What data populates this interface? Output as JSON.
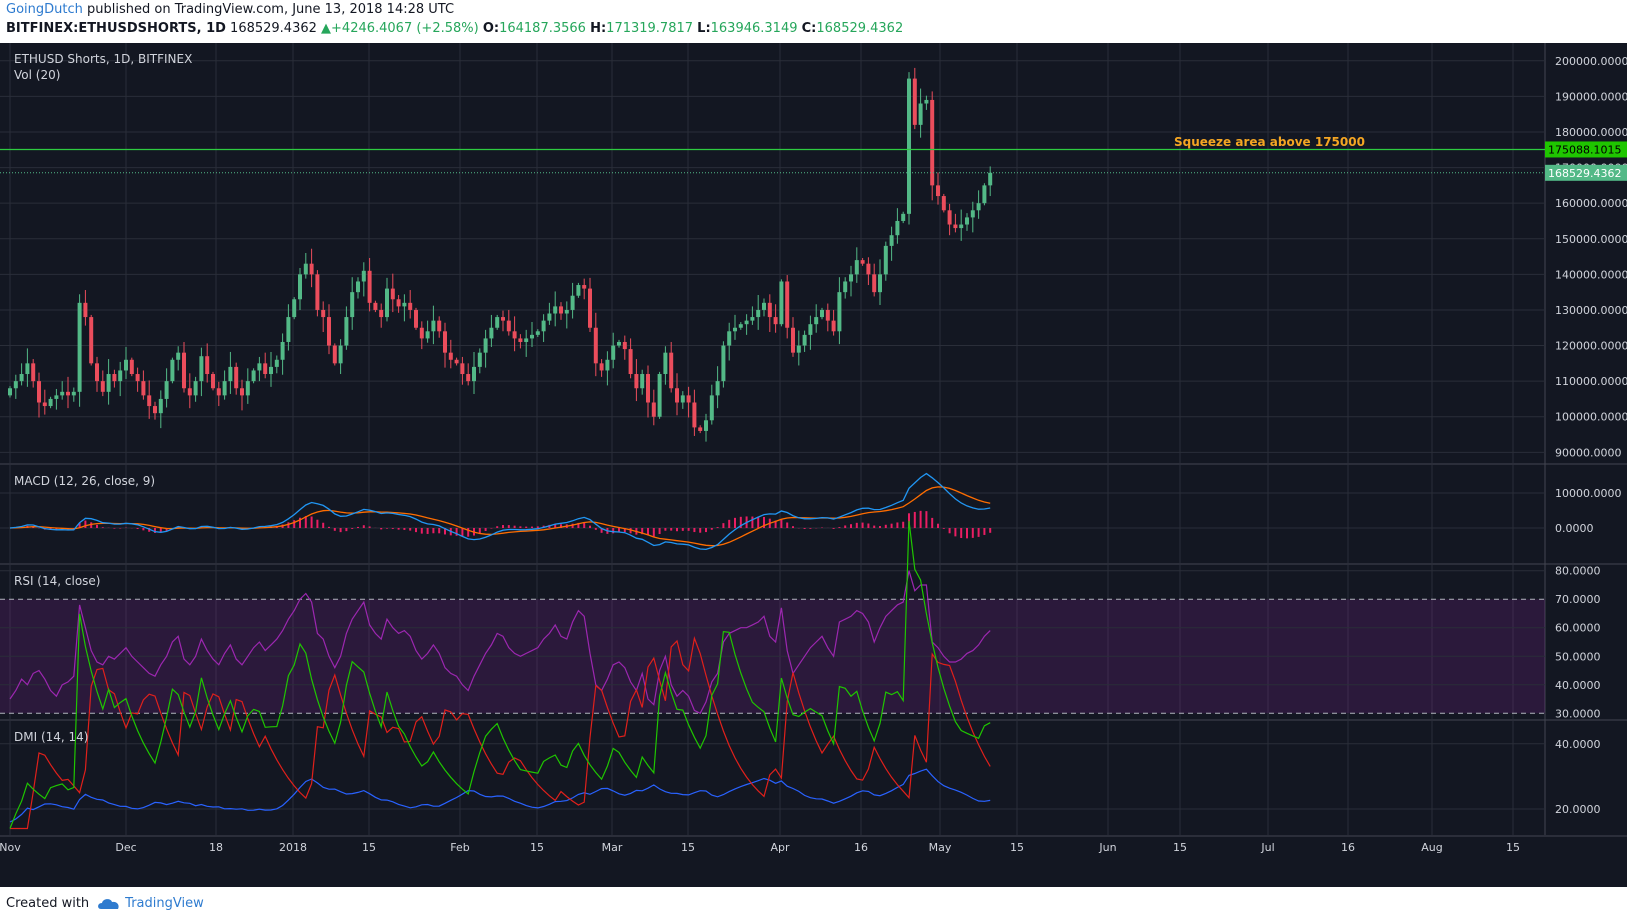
{
  "header": {
    "author": "GoingDutch",
    "published": "published on TradingView.com, June 13, 2018 14:28 UTC",
    "symbol": "BITFINEX:ETHUSDSHORTS, 1D",
    "last": "168529.4362",
    "change": "▲+4246.4067 (+2.58%)",
    "o_label": "O:",
    "o_val": "164187.3566",
    "h_label": "H:",
    "h_val": "171319.7817",
    "l_label": "L:",
    "l_val": "163946.3149",
    "c_label": "C:",
    "c_val": "168529.4362"
  },
  "footer": {
    "created": "Created with",
    "brand": "TradingView"
  },
  "colors": {
    "bg": "#131722",
    "up": "#53b987",
    "down": "#eb4d5c",
    "grid": "#2a2e39",
    "hline": "#2ecc40",
    "annotation": "#f5a623",
    "macd": "#2196f3",
    "signal": "#ff6d00",
    "hist": "#e91e63",
    "rsi": "#9c27b0",
    "dmi_plus": "#1fc600",
    "dmi_minus": "#e0201b",
    "adx": "#2962ff"
  },
  "chart_data": [
    {
      "type": "candlestick",
      "title": "ETHUSD Shorts, 1D, BITFINEX",
      "legend": "Vol (20)",
      "ylim": [
        87000,
        205000
      ],
      "y_ticks": [
        "200000.0000",
        "190000.0000",
        "180000.0000",
        "170000.0000",
        "160000.0000",
        "150000.0000",
        "140000.0000",
        "130000.0000",
        "120000.0000",
        "110000.0000",
        "100000.0000",
        "90000.0000"
      ],
      "x_ticks": [
        "Nov",
        "Dec",
        "18",
        "2018",
        "15",
        "Feb",
        "15",
        "Mar",
        "15",
        "Apr",
        "16",
        "May",
        "15",
        "Jun",
        "15",
        "Jul",
        "16",
        "Aug",
        "15"
      ],
      "annotation": "Squeeze area above 175000",
      "hline_label": "175088.1015",
      "hline_value": 175088.1015,
      "last_label": "168529.4362",
      "last_value": 168529.4362,
      "closes": [
        108000,
        110000,
        112000,
        115000,
        110000,
        104000,
        103000,
        105000,
        106000,
        107000,
        106000,
        107000,
        132000,
        128000,
        115000,
        110000,
        107000,
        112000,
        110000,
        113000,
        116000,
        112000,
        110000,
        106000,
        103000,
        101000,
        105000,
        110000,
        116000,
        118000,
        108000,
        106000,
        110000,
        117000,
        112000,
        108000,
        106000,
        110000,
        114000,
        108000,
        106000,
        110000,
        113000,
        115000,
        112000,
        114000,
        116000,
        121000,
        128000,
        133000,
        140000,
        143000,
        140000,
        130000,
        128000,
        120000,
        115000,
        120000,
        128000,
        135000,
        138000,
        141000,
        132000,
        130000,
        128000,
        136000,
        133000,
        131000,
        132000,
        130000,
        125000,
        122000,
        124000,
        127000,
        124000,
        118000,
        116000,
        115000,
        112000,
        110000,
        114000,
        118000,
        122000,
        125000,
        128000,
        127000,
        124000,
        122000,
        121000,
        122000,
        123000,
        124000,
        127000,
        129000,
        131000,
        129000,
        130000,
        134000,
        137000,
        136000,
        125000,
        115000,
        113000,
        116000,
        120000,
        121000,
        119000,
        112000,
        108000,
        112000,
        104000,
        100000,
        112000,
        118000,
        108000,
        104000,
        106000,
        104000,
        97000,
        96000,
        99000,
        106000,
        110000,
        120000,
        124000,
        125000,
        126000,
        127000,
        128000,
        130000,
        132000,
        128000,
        126000,
        138000,
        125000,
        118000,
        120000,
        123000,
        126000,
        128000,
        130000,
        127000,
        124000,
        135000,
        138000,
        140000,
        144000,
        143000,
        140000,
        135000,
        140000,
        148000,
        151000,
        155000,
        157000,
        195000,
        182000,
        188000,
        189000,
        165000,
        162000,
        158000,
        154000,
        153000,
        154000,
        156000,
        158000,
        160000,
        165000,
        168529
      ]
    },
    {
      "type": "line",
      "title": "MACD (12, 26, close, 9)",
      "ylim": [
        -10000,
        18000
      ],
      "y_ticks": [
        "10000.0000",
        "0.0000"
      ],
      "series": [
        "MACD",
        "Signal",
        "Histogram"
      ]
    },
    {
      "type": "line",
      "title": "RSI (14, close)",
      "ylim": [
        28,
        82
      ],
      "y_ticks": [
        "80.0000",
        "70.0000",
        "60.0000",
        "50.0000",
        "40.0000",
        "30.0000"
      ],
      "band": [
        30,
        70
      ],
      "rsi": [
        35,
        38,
        42,
        40,
        44,
        45,
        42,
        38,
        36,
        40,
        41,
        43,
        68,
        60,
        52,
        48,
        47,
        50,
        49,
        51,
        53,
        50,
        48,
        46,
        44,
        43,
        47,
        50,
        55,
        57,
        49,
        47,
        50,
        56,
        52,
        49,
        47,
        51,
        54,
        49,
        47,
        50,
        53,
        55,
        52,
        54,
        56,
        59,
        63,
        66,
        70,
        72,
        69,
        58,
        56,
        50,
        46,
        50,
        58,
        63,
        66,
        69,
        61,
        58,
        56,
        63,
        60,
        58,
        59,
        57,
        52,
        49,
        51,
        54,
        51,
        46,
        44,
        43,
        40,
        38,
        43,
        47,
        51,
        54,
        58,
        57,
        53,
        51,
        50,
        51,
        52,
        53,
        56,
        58,
        61,
        57,
        56,
        62,
        66,
        64,
        51,
        40,
        38,
        42,
        47,
        48,
        46,
        41,
        38,
        44,
        35,
        33,
        45,
        50,
        40,
        36,
        38,
        36,
        31,
        30,
        34,
        41,
        44,
        55,
        58,
        59,
        60,
        60,
        61,
        62,
        64,
        57,
        55,
        67,
        52,
        44,
        47,
        50,
        53,
        55,
        57,
        53,
        50,
        62,
        63,
        64,
        66,
        65,
        62,
        55,
        60,
        64,
        66,
        68,
        69,
        80,
        73,
        75,
        75,
        55,
        53,
        50,
        48,
        48,
        49,
        51,
        52,
        54,
        57,
        59
      ]
    },
    {
      "type": "line",
      "title": "DMI (14, 14)",
      "ylim": [
        12,
        47
      ],
      "y_ticks": [
        "40.0000",
        "20.0000"
      ]
    }
  ]
}
